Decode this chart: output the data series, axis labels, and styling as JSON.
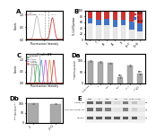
{
  "background_color": "#ffffff",
  "panels": {
    "A": {
      "label": "A",
      "xlabel": "Fluorescence Intensity",
      "ylabel": "Counts",
      "line1_color": "#bbbbbb",
      "line2_color": "#cc4444",
      "line1_peak": 0.3,
      "line2_peak": 0.72,
      "vline1": 0.52,
      "vline2": 0.62
    },
    "B": {
      "label": "B",
      "categories": [
        "LF",
        "T",
        "B1",
        "B2",
        "B",
        "LF+T",
        "LF+B"
      ],
      "g1_phase": [
        58,
        50,
        50,
        44,
        50,
        35,
        28
      ],
      "s_phase": [
        17,
        20,
        22,
        24,
        20,
        27,
        30
      ],
      "g2m_phase": [
        25,
        30,
        28,
        32,
        30,
        38,
        42
      ],
      "color_g1": "#e8e8e8",
      "color_s": "#4472c4",
      "color_g2m": "#cc3333",
      "ylabel": "% Cell Number",
      "legend": [
        "G2/M",
        "S",
        "G1/G0"
      ]
    },
    "C": {
      "label": "C",
      "subtitle": "Cyclin D1",
      "xlabel": "Fluorescence Intensity",
      "ylabel": "Counts",
      "peaks": [
        0.28,
        0.38,
        0.48,
        0.58,
        0.68,
        0.78
      ],
      "colors": [
        "#888888",
        "#33aa33",
        "#4488cc",
        "#cc44cc",
        "#cc8833",
        "#cc3333"
      ],
      "legend_labels": [
        "Scramble",
        "LF",
        "LF+20",
        "LF+80",
        "LF+160",
        "LF+320"
      ]
    },
    "Da": {
      "label": "Da",
      "categories": [
        "Scramble",
        "LF",
        "HWA",
        "LGS",
        "LF+T",
        "LF+T+\nLGS"
      ],
      "values": [
        100,
        95,
        90,
        28,
        80,
        42
      ],
      "bar_color": "#aaaaaa",
      "ylabel": "Relative Cyclin D1\n(%of Scramble)",
      "ylim": [
        0,
        130
      ],
      "sig_markers": [
        "",
        "",
        "",
        "***",
        "",
        "***"
      ]
    },
    "Db": {
      "label": "Db",
      "categories": [
        "LF",
        "LF+1"
      ],
      "values": [
        100,
        98
      ],
      "bar_color": "#aaaaaa",
      "ylabel": "aTm286-Cyclin D1\n/Cyclin D1",
      "ylim": [
        0,
        130
      ]
    },
    "E": {
      "label": "E",
      "cols": [
        "CTRL",
        "LF",
        "HWA",
        "LGS",
        "LF+T",
        "LF+T + LGS"
      ],
      "rows": [
        "Cyclin D1",
        "pThr286-Cyclin D1",
        "GAPDH"
      ],
      "row_mw": [
        "36",
        "37",
        "37"
      ],
      "band_intensities": [
        [
          0.75,
          0.7,
          0.65,
          0.18,
          0.62,
          0.28
        ],
        [
          0.7,
          0.65,
          0.6,
          0.14,
          0.58,
          0.22
        ],
        [
          0.78,
          0.78,
          0.78,
          0.78,
          0.78,
          0.78
        ]
      ]
    }
  }
}
